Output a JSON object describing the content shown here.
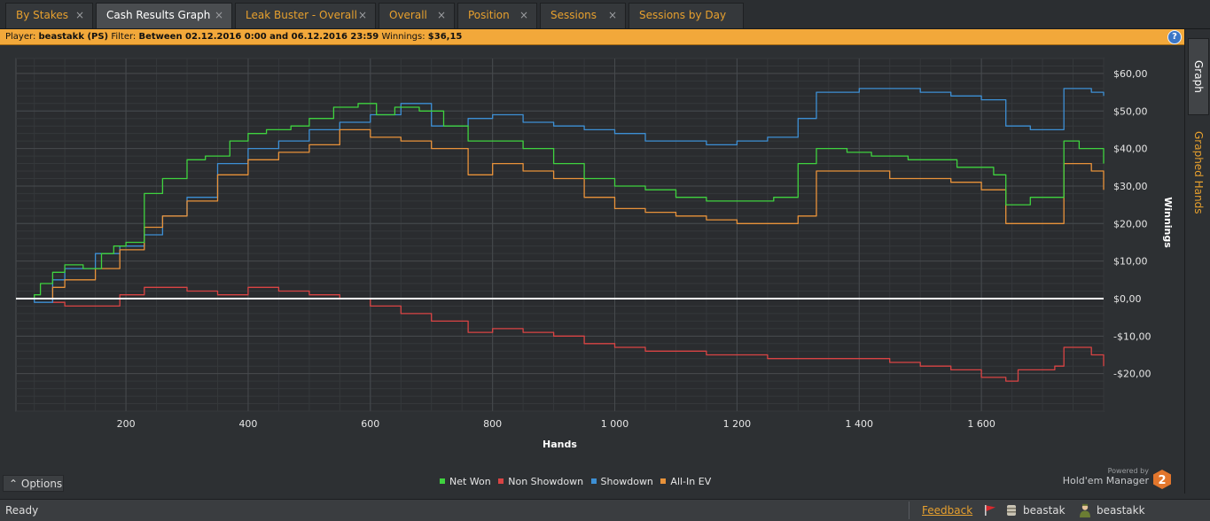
{
  "tabs": [
    {
      "label": "By Stakes",
      "close": "×",
      "active": false
    },
    {
      "label": "Cash Results Graph",
      "close": "×",
      "active": true
    },
    {
      "label": "Leak Buster - Overall",
      "close": "×",
      "active": false
    },
    {
      "label": "Overall",
      "close": "×",
      "active": false
    },
    {
      "label": "Position",
      "close": "×",
      "active": false
    },
    {
      "label": "Sessions",
      "close": "×",
      "active": false
    },
    {
      "label": "Sessions by Day",
      "close": "",
      "active": false
    }
  ],
  "filter": {
    "player_label": "Player:",
    "player_value": "beastakk (PS)",
    "filter_label": "Filter:",
    "filter_value": "Between 02.12.2016 0:00 and 06.12.2016 23:59",
    "winnings_label": "Winnings:",
    "winnings_value": "$36,15",
    "help_glyph": "?"
  },
  "side_tabs": {
    "graph": "Graph",
    "graphed_hands": "Graphed Hands"
  },
  "options_label": "⌃  Options",
  "powered": {
    "line1": "Powered by",
    "line2": "Hold'em Manager",
    "logo_text": "2"
  },
  "status": {
    "ready": "Ready",
    "feedback": "Feedback",
    "user1": "beastak",
    "user2": "beastakk (PokerStars)"
  },
  "colors": {
    "net_won": "#3fd23f",
    "non_showdown": "#d94444",
    "showdown": "#3d8fd4",
    "all_in_ev": "#e8923a",
    "zero_line": "#ffffff",
    "accent": "#e7a02e"
  },
  "chart_data": {
    "type": "line",
    "title": "",
    "xlabel": "Hands",
    "ylabel": "Winnings",
    "xlim": [
      20,
      1800
    ],
    "ylim": [
      -30,
      64
    ],
    "xticks": [
      200,
      400,
      600,
      800,
      1000,
      1200,
      1400,
      1600
    ],
    "xtick_labels": [
      "200",
      "400",
      "600",
      "800",
      "1 000",
      "1 200",
      "1 400",
      "1 600"
    ],
    "yticks": [
      60,
      50,
      40,
      30,
      20,
      10,
      0,
      -10,
      -20
    ],
    "ytick_labels": [
      "$60,00",
      "$50,00",
      "$40,00",
      "$30,00",
      "$20,00",
      "$10,00",
      "$0,00",
      "-$10,00",
      "-$20,00"
    ],
    "grid": true,
    "legend_position": "bottom-center",
    "series": [
      {
        "name": "Net Won",
        "color": "#3fd23f",
        "x": [
          20,
          50,
          60,
          80,
          100,
          130,
          160,
          180,
          200,
          230,
          260,
          300,
          330,
          370,
          400,
          430,
          470,
          500,
          540,
          580,
          610,
          640,
          680,
          720,
          760,
          800,
          850,
          900,
          950,
          1000,
          1050,
          1100,
          1150,
          1200,
          1260,
          1300,
          1330,
          1380,
          1420,
          1480,
          1560,
          1620,
          1640,
          1680,
          1720,
          1735,
          1760,
          1800
        ],
        "y": [
          0,
          1,
          4,
          7,
          9,
          8,
          12,
          14,
          15,
          28,
          32,
          37,
          38,
          42,
          44,
          45,
          46,
          48,
          51,
          52,
          49,
          51,
          50,
          46,
          42,
          42,
          40,
          36,
          32,
          30,
          29,
          27,
          26,
          26,
          27,
          36,
          40,
          39,
          38,
          37,
          35,
          33,
          25,
          27,
          27,
          42,
          40,
          36
        ]
      },
      {
        "name": "Non Showdown",
        "color": "#d94444",
        "x": [
          20,
          50,
          80,
          100,
          150,
          190,
          230,
          260,
          300,
          350,
          400,
          450,
          500,
          550,
          600,
          650,
          700,
          760,
          800,
          850,
          900,
          950,
          1000,
          1050,
          1100,
          1150,
          1200,
          1250,
          1300,
          1350,
          1400,
          1450,
          1500,
          1550,
          1600,
          1640,
          1660,
          1720,
          1735,
          1780,
          1800
        ],
        "y": [
          0,
          0,
          -1,
          -2,
          -2,
          1,
          3,
          3,
          2,
          1,
          3,
          2,
          1,
          0,
          -2,
          -4,
          -6,
          -9,
          -8,
          -9,
          -10,
          -12,
          -13,
          -14,
          -14,
          -15,
          -15,
          -16,
          -16,
          -16,
          -16,
          -17,
          -18,
          -19,
          -21,
          -22,
          -19,
          -18,
          -13,
          -15,
          -18
        ]
      },
      {
        "name": "Showdown",
        "color": "#3d8fd4",
        "x": [
          20,
          50,
          80,
          100,
          150,
          190,
          230,
          260,
          300,
          350,
          400,
          450,
          500,
          550,
          600,
          650,
          700,
          760,
          800,
          850,
          900,
          950,
          1000,
          1050,
          1100,
          1150,
          1200,
          1250,
          1300,
          1330,
          1400,
          1450,
          1500,
          1550,
          1600,
          1640,
          1680,
          1720,
          1735,
          1780,
          1800
        ],
        "y": [
          0,
          -1,
          5,
          8,
          12,
          14,
          17,
          22,
          27,
          36,
          40,
          42,
          45,
          47,
          49,
          52,
          46,
          48,
          49,
          47,
          46,
          45,
          44,
          42,
          42,
          41,
          42,
          43,
          48,
          55,
          56,
          56,
          55,
          54,
          53,
          46,
          45,
          45,
          56,
          55,
          54
        ]
      },
      {
        "name": "All-In EV",
        "color": "#e8923a",
        "x": [
          20,
          50,
          80,
          100,
          150,
          190,
          230,
          260,
          300,
          350,
          400,
          450,
          500,
          550,
          600,
          650,
          700,
          760,
          800,
          850,
          900,
          950,
          1000,
          1050,
          1100,
          1150,
          1200,
          1250,
          1300,
          1330,
          1400,
          1450,
          1500,
          1550,
          1600,
          1640,
          1680,
          1720,
          1735,
          1780,
          1800
        ],
        "y": [
          0,
          0,
          3,
          5,
          8,
          13,
          19,
          22,
          26,
          33,
          37,
          39,
          41,
          45,
          43,
          42,
          40,
          33,
          36,
          34,
          32,
          27,
          24,
          23,
          22,
          21,
          20,
          20,
          22,
          34,
          34,
          32,
          32,
          31,
          29,
          20,
          20,
          20,
          36,
          34,
          29
        ]
      }
    ]
  }
}
